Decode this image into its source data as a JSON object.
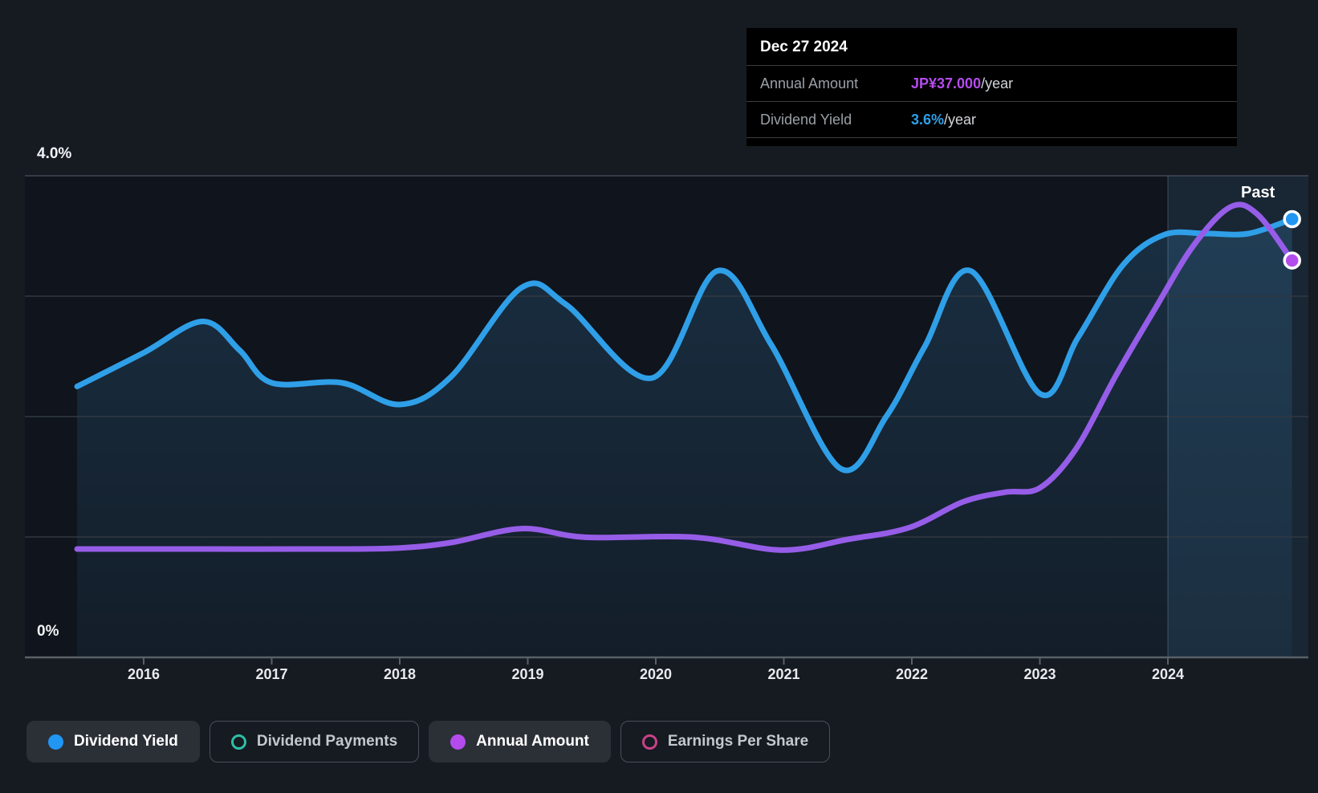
{
  "past_label": "Past",
  "y_axis": {
    "top_label": "4.0%",
    "bottom_label": "0%"
  },
  "x_axis": {
    "years": [
      "2016",
      "2017",
      "2018",
      "2019",
      "2020",
      "2021",
      "2022",
      "2023",
      "2024"
    ]
  },
  "tooltip": {
    "date": "Dec 27 2024",
    "rows": [
      {
        "label": "Annual Amount",
        "value": "JP¥37.000",
        "suffix": "/year",
        "value_color": "#b44ced"
      },
      {
        "label": "Dividend Yield",
        "value": "3.6%",
        "suffix": "/year",
        "value_color": "#2f9fe8"
      }
    ]
  },
  "legend": [
    {
      "label": "Dividend Yield",
      "color": "#2196f3",
      "style": "filled",
      "active": true
    },
    {
      "label": "Dividend Payments",
      "color": "#2ebfa5",
      "style": "hollow",
      "active": false
    },
    {
      "label": "Annual Amount",
      "color": "#b44ced",
      "style": "filled",
      "active": true
    },
    {
      "label": "Earnings Per Share",
      "color": "#c94288",
      "style": "hollow",
      "active": false
    }
  ],
  "colors": {
    "page_bg": "#161a21",
    "plot_bg": "#10141c",
    "yield_line": "#2f9fe8",
    "amount_line": "#965de8",
    "axis": "#596066",
    "gridline": "#313842",
    "gridline_top": "#404754",
    "divider": "rgba(170,205,240,0.14)",
    "past_overlay": "rgba(90,170,230,0.12)",
    "area_top": "rgba(60,150,210,0.22)",
    "area_bottom": "rgba(60,150,210,0.07)"
  },
  "chart_data": {
    "type": "area",
    "title": "Dividend Yield and Annual Dividend Amount history",
    "x_ticks": [
      "2016",
      "2017",
      "2018",
      "2019",
      "2020",
      "2021",
      "2022",
      "2023",
      "2024"
    ],
    "x_tick_years": [
      2016,
      2017,
      2018,
      2019,
      2020,
      2021,
      2022,
      2023,
      2024
    ],
    "x_domain_years": [
      2015.07,
      2025.09
    ],
    "past_divider_year": 2024,
    "grid": true,
    "legend_position": "bottom",
    "y_axis_percent": {
      "min": 0,
      "max": 4.0,
      "gridline_step_pct": 1.0,
      "top_label": "4.0%",
      "bottom_label": "0%"
    },
    "series": [
      {
        "name": "Dividend Yield",
        "unit": "%",
        "axis_max": 4.0,
        "color": "#2f9fe8",
        "marker_color": "#2196f3",
        "area": true,
        "points": [
          [
            2015.48,
            2.25
          ],
          [
            2016.0,
            2.53
          ],
          [
            2016.46,
            2.79
          ],
          [
            2016.75,
            2.55
          ],
          [
            2017.0,
            2.28
          ],
          [
            2017.55,
            2.28
          ],
          [
            2018.0,
            2.1
          ],
          [
            2018.4,
            2.33
          ],
          [
            2018.95,
            3.07
          ],
          [
            2019.3,
            2.93
          ],
          [
            2019.97,
            2.32
          ],
          [
            2020.48,
            3.21
          ],
          [
            2020.9,
            2.6
          ],
          [
            2021.44,
            1.57
          ],
          [
            2021.8,
            2.0
          ],
          [
            2022.1,
            2.58
          ],
          [
            2022.46,
            3.21
          ],
          [
            2023.0,
            2.19
          ],
          [
            2023.3,
            2.66
          ],
          [
            2023.65,
            3.26
          ],
          [
            2023.97,
            3.51
          ],
          [
            2024.3,
            3.52
          ],
          [
            2024.63,
            3.52
          ],
          [
            2024.97,
            3.64
          ]
        ]
      },
      {
        "name": "Annual Amount",
        "unit": "JP¥/year",
        "axis_max": 44.9,
        "color": "#965de8",
        "marker_color": "#b44ced",
        "area": false,
        "points": [
          [
            2015.48,
            10.1
          ],
          [
            2016.5,
            10.1
          ],
          [
            2017.5,
            10.1
          ],
          [
            2018.0,
            10.2
          ],
          [
            2018.4,
            10.7
          ],
          [
            2018.95,
            12.0
          ],
          [
            2019.45,
            11.2
          ],
          [
            2020.3,
            11.2
          ],
          [
            2020.98,
            10.0
          ],
          [
            2021.5,
            11.0
          ],
          [
            2021.98,
            12.1
          ],
          [
            2022.4,
            14.5
          ],
          [
            2022.73,
            15.4
          ],
          [
            2023.0,
            15.8
          ],
          [
            2023.28,
            19.4
          ],
          [
            2023.6,
            26.4
          ],
          [
            2023.9,
            32.5
          ],
          [
            2024.2,
            38.4
          ],
          [
            2024.49,
            42.0
          ],
          [
            2024.7,
            41.3
          ],
          [
            2024.97,
            37.0
          ]
        ]
      }
    ],
    "final_values": {
      "dividend_yield_pct": 3.6,
      "annual_amount_jpy": 37.0
    }
  }
}
